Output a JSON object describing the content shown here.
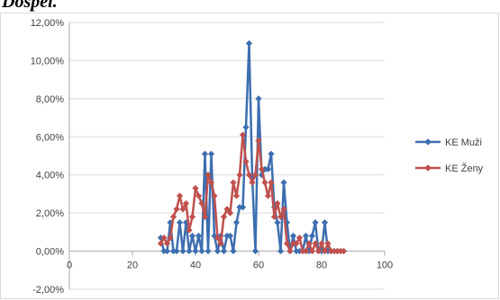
{
  "heading": "Dospel.",
  "colors": {
    "series_1": "#3d6eb0",
    "series_2": "#c0504d",
    "axis": "#a6a6a6",
    "grid": "#d9d9d9"
  },
  "chart_data": {
    "type": "scatter",
    "markers": "diamond",
    "lines": true,
    "xlim": [
      0,
      100
    ],
    "ylim": [
      -0.02,
      0.12
    ],
    "x_ticks": [
      0,
      20,
      40,
      60,
      80,
      100
    ],
    "x_tick_labels": [
      "0",
      "20",
      "40",
      "60",
      "80",
      "100"
    ],
    "y_ticks": [
      -0.02,
      0,
      0.02,
      0.04,
      0.06,
      0.08,
      0.1,
      0.12
    ],
    "y_tick_labels": [
      "-2,00%",
      "0,00%",
      "2,00%",
      "4,00%",
      "6,00%",
      "8,00%",
      "10,00%",
      "12,00%"
    ],
    "grid": {
      "horizontal": true,
      "vertical": false
    },
    "legend_position": "right",
    "series": [
      {
        "name": "KE Muži",
        "color": "#3d6eb0",
        "x": [
          29,
          30,
          31,
          32,
          33,
          34,
          35,
          36,
          37,
          38,
          39,
          40,
          41,
          42,
          43,
          44,
          45,
          46,
          47,
          48,
          49,
          50,
          51,
          52,
          53,
          54,
          55,
          56,
          57,
          58,
          59,
          60,
          61,
          62,
          63,
          64,
          65,
          66,
          67,
          68,
          69,
          70,
          71,
          72,
          73,
          74,
          75,
          76,
          77,
          78,
          79,
          80,
          81,
          82,
          83,
          84,
          85,
          86,
          87
        ],
        "y": [
          0.007,
          0.0,
          0.0,
          0.015,
          0.0,
          0.0,
          0.015,
          0.0,
          0.015,
          0.0,
          0.008,
          0.0,
          0.008,
          0.0,
          0.051,
          0.0,
          0.051,
          0.008,
          0.0,
          0.008,
          0.0,
          0.008,
          0.008,
          0.0,
          0.015,
          0.023,
          0.023,
          0.065,
          0.109,
          0.039,
          0.0,
          0.08,
          0.04,
          0.043,
          0.043,
          0.051,
          0.023,
          0.015,
          0.0,
          0.036,
          0.015,
          0.0,
          0.008,
          0.0,
          0.0,
          0.0,
          0.008,
          0.0,
          0.008,
          0.015,
          0.0,
          0.0,
          0.015,
          0.0,
          0.0,
          0.0,
          0.0,
          0.0,
          0.0
        ]
      },
      {
        "name": "KE Ženy",
        "color": "#c0504d",
        "x": [
          29,
          30,
          31,
          32,
          33,
          34,
          35,
          36,
          37,
          38,
          39,
          40,
          41,
          42,
          43,
          44,
          45,
          46,
          47,
          48,
          49,
          50,
          51,
          52,
          53,
          54,
          55,
          56,
          57,
          58,
          59,
          60,
          61,
          62,
          63,
          64,
          65,
          66,
          67,
          68,
          69,
          70,
          71,
          72,
          73,
          74,
          75,
          76,
          77,
          78,
          79,
          80,
          81,
          82,
          83,
          84,
          85,
          86,
          87
        ],
        "y": [
          0.004,
          0.007,
          0.004,
          0.007,
          0.018,
          0.022,
          0.029,
          0.022,
          0.025,
          0.011,
          0.018,
          0.033,
          0.029,
          0.025,
          0.018,
          0.04,
          0.036,
          0.029,
          0.007,
          0.004,
          0.018,
          0.022,
          0.02,
          0.036,
          0.029,
          0.04,
          0.061,
          0.047,
          0.04,
          0.036,
          0.04,
          0.058,
          0.043,
          0.036,
          0.029,
          0.036,
          0.018,
          0.025,
          0.018,
          0.022,
          0.004,
          0.0,
          0.004,
          0.004,
          0.007,
          0.0,
          0.0,
          0.004,
          0.0,
          0.004,
          0.0,
          0.004,
          0.0,
          0.004,
          0.0,
          0.0,
          0.0,
          0.0,
          0.0
        ]
      }
    ]
  }
}
